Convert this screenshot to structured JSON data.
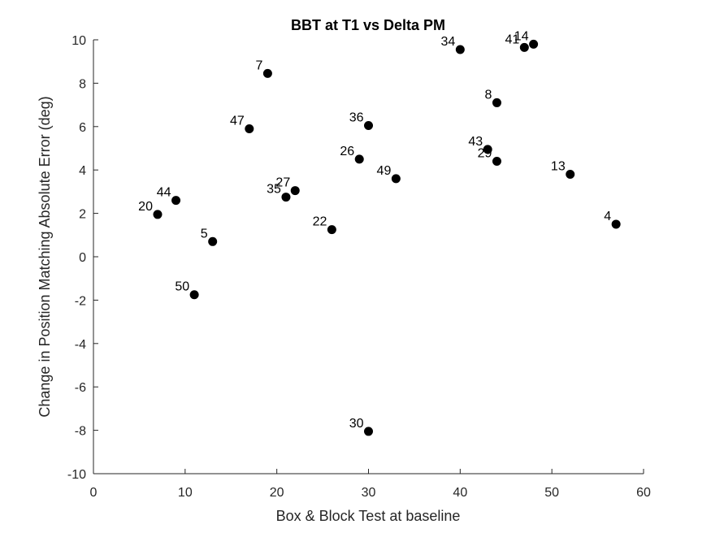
{
  "chart_data": {
    "type": "scatter",
    "title": "BBT at T1 vs Delta PM",
    "xlabel": "Box & Block Test at baseline",
    "ylabel": "Change in Position Matching Absolute Error (deg)",
    "xlim": [
      0,
      60
    ],
    "ylim": [
      -10,
      10
    ],
    "xticks": [
      0,
      10,
      20,
      30,
      40,
      50,
      60
    ],
    "yticks": [
      -10,
      -8,
      -6,
      -4,
      -2,
      0,
      2,
      4,
      6,
      8,
      10
    ],
    "grid": false,
    "marker_color": "#000000",
    "points": [
      {
        "label": "34",
        "x": 40,
        "y": 9.55
      },
      {
        "label": "41",
        "x": 47,
        "y": 9.65
      },
      {
        "label": "14",
        "x": 48,
        "y": 9.8
      },
      {
        "label": "7",
        "x": 19,
        "y": 8.45
      },
      {
        "label": "8",
        "x": 44,
        "y": 7.1
      },
      {
        "label": "36",
        "x": 30,
        "y": 6.05
      },
      {
        "label": "47",
        "x": 17,
        "y": 5.9
      },
      {
        "label": "43",
        "x": 43,
        "y": 4.95
      },
      {
        "label": "26",
        "x": 29,
        "y": 4.5
      },
      {
        "label": "29",
        "x": 44,
        "y": 4.4
      },
      {
        "label": "13",
        "x": 52,
        "y": 3.8
      },
      {
        "label": "49",
        "x": 33,
        "y": 3.6
      },
      {
        "label": "27",
        "x": 22,
        "y": 3.05
      },
      {
        "label": "35",
        "x": 21,
        "y": 2.75
      },
      {
        "label": "44",
        "x": 9,
        "y": 2.6
      },
      {
        "label": "20",
        "x": 7,
        "y": 1.95
      },
      {
        "label": "4",
        "x": 57,
        "y": 1.5
      },
      {
        "label": "22",
        "x": 26,
        "y": 1.25
      },
      {
        "label": "5",
        "x": 13,
        "y": 0.7
      },
      {
        "label": "50",
        "x": 11,
        "y": -1.75
      },
      {
        "label": "30",
        "x": 30,
        "y": -8.05
      }
    ]
  }
}
